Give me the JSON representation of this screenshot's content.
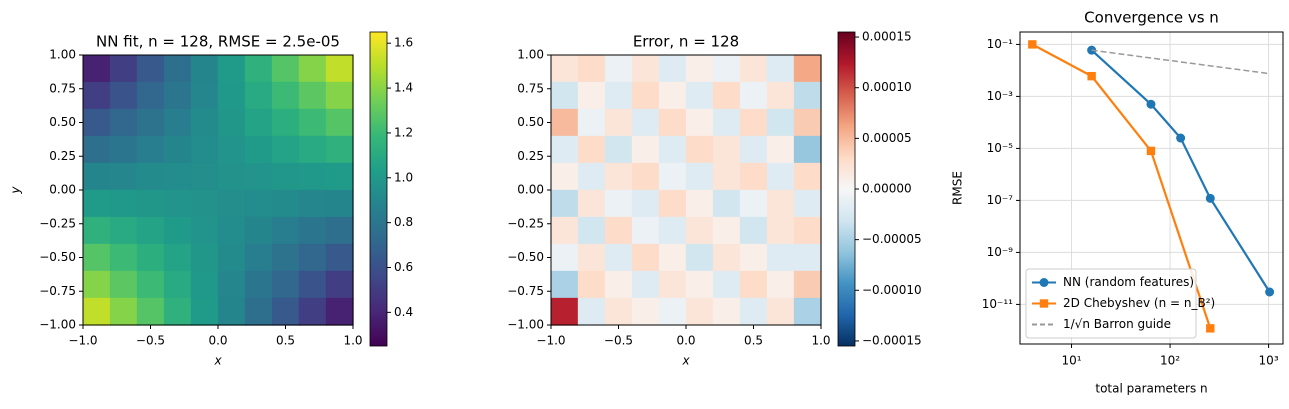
{
  "chart_data": [
    {
      "type": "heatmap",
      "title": "NN fit, n = 128, RMSE = 2.5e-05",
      "xlabel": "x",
      "ylabel": "y",
      "xlim": [
        -1,
        1
      ],
      "ylim": [
        -1,
        1
      ],
      "xticks": [
        {
          "value": -1,
          "label": "−1.0"
        },
        {
          "value": -0.5,
          "label": "−0.5"
        },
        {
          "value": 0,
          "label": "0.0"
        },
        0.5,
        {
          "value": 1,
          "label": "1.0"
        }
      ],
      "yticks": [
        {
          "value": -1,
          "label": "−1.00"
        },
        {
          "value": -0.75,
          "label": "−0.75"
        },
        {
          "value": -0.5,
          "label": "−0.50"
        },
        {
          "value": -0.25,
          "label": "−0.25"
        },
        {
          "value": 0,
          "label": "0.00"
        },
        0.25,
        {
          "value": 0.5,
          "label": "0.50"
        },
        0.75,
        {
          "value": 1,
          "label": "1.00"
        }
      ],
      "colormap": "viridis",
      "clim": [
        0.25,
        1.65
      ],
      "cticks": [
        0.4,
        0.6,
        0.8,
        {
          "value": 1,
          "label": "1.0"
        },
        1.2,
        1.4,
        1.6
      ],
      "values": [
        [
          0.38,
          0.51,
          0.64,
          0.76,
          0.89,
          1.01,
          1.14,
          1.27,
          1.39,
          1.52
        ],
        [
          0.51,
          0.61,
          0.71,
          0.8,
          0.9,
          1.0,
          1.1,
          1.2,
          1.29,
          1.39
        ],
        [
          0.64,
          0.71,
          0.78,
          0.85,
          0.92,
          0.99,
          1.06,
          1.13,
          1.2,
          1.27
        ],
        [
          0.76,
          0.8,
          0.85,
          0.89,
          0.93,
          0.97,
          1.01,
          1.06,
          1.1,
          1.14
        ],
        [
          0.89,
          0.9,
          0.92,
          0.93,
          0.94,
          0.96,
          0.97,
          0.99,
          1.0,
          1.01
        ],
        [
          1.01,
          1.0,
          0.99,
          0.97,
          0.96,
          0.94,
          0.93,
          0.92,
          0.9,
          0.89
        ],
        [
          1.14,
          1.1,
          1.06,
          1.01,
          0.97,
          0.93,
          0.89,
          0.85,
          0.8,
          0.76
        ],
        [
          1.27,
          1.2,
          1.13,
          1.06,
          0.99,
          0.92,
          0.85,
          0.78,
          0.71,
          0.64
        ],
        [
          1.39,
          1.29,
          1.2,
          1.1,
          1.0,
          0.9,
          0.8,
          0.71,
          0.61,
          0.51
        ],
        [
          1.52,
          1.39,
          1.27,
          1.14,
          1.01,
          0.89,
          0.76,
          0.64,
          0.51,
          0.38
        ]
      ]
    },
    {
      "type": "heatmap",
      "title": "Error, n = 128",
      "xlabel": "x",
      "xlim": [
        -1,
        1
      ],
      "ylim": [
        -1,
        1
      ],
      "xticks": [
        {
          "value": -1,
          "label": "−1.0"
        },
        {
          "value": -0.5,
          "label": "−0.5"
        },
        {
          "value": 0,
          "label": "0.0"
        },
        0.5,
        {
          "value": 1,
          "label": "1.0"
        }
      ],
      "yticks": [
        {
          "value": -1,
          "label": "−1.00"
        },
        {
          "value": -0.75,
          "label": "−0.75"
        },
        {
          "value": -0.5,
          "label": "−0.50"
        },
        {
          "value": -0.25,
          "label": "−0.25"
        },
        {
          "value": 0,
          "label": "0.00"
        },
        0.25,
        {
          "value": 0.5,
          "label": "0.50"
        },
        0.75,
        {
          "value": 1,
          "label": "1.00"
        }
      ],
      "colormap": "RdBu_r",
      "clim": [
        -0.000155,
        0.000155
      ],
      "cticks": [
        {
          "value": -0.00015,
          "label": "−0.00015"
        },
        {
          "value": -0.0001,
          "label": "−0.00010"
        },
        {
          "value": -5e-05,
          "label": "−0.00005"
        },
        {
          "value": 0,
          "label": "0.00000"
        },
        {
          "value": 5e-05,
          "label": "0.00005"
        },
        {
          "value": 0.0001,
          "label": "0.00010"
        },
        {
          "value": 0.00015,
          "label": "0.00015"
        }
      ],
      "values": [
        [
          2e-05,
          3e-05,
          -1e-05,
          2e-05,
          -2e-05,
          1e-05,
          -1e-05,
          2e-05,
          -2e-05,
          6e-05
        ],
        [
          -3e-05,
          1e-05,
          -2e-05,
          3e-05,
          1e-05,
          -2e-05,
          3e-05,
          -1e-05,
          2e-05,
          -4e-05
        ],
        [
          5e-05,
          -1e-05,
          2e-05,
          -2e-05,
          3e-05,
          1e-05,
          -2e-05,
          3e-05,
          -3e-05,
          4e-05
        ],
        [
          -2e-05,
          3e-05,
          -3e-05,
          1e-05,
          -2e-05,
          3e-05,
          2e-05,
          -2e-05,
          1e-05,
          -6e-05
        ],
        [
          1e-05,
          -2e-05,
          2e-05,
          3e-05,
          -1e-05,
          -2e-05,
          2e-05,
          3e-05,
          -2e-05,
          3e-05
        ],
        [
          -4e-05,
          2e-05,
          -1e-05,
          -2e-05,
          3e-05,
          1e-05,
          -3e-05,
          -1e-05,
          2e-05,
          -2e-05
        ],
        [
          2e-05,
          -3e-05,
          3e-05,
          -1e-05,
          -2e-05,
          2e-05,
          1e-05,
          -3e-05,
          2e-05,
          3e-05
        ],
        [
          -1e-05,
          2e-05,
          -2e-05,
          3e-05,
          1e-05,
          -3e-05,
          2e-05,
          1e-05,
          -2e-05,
          -2e-05
        ],
        [
          -5e-05,
          3e-05,
          1e-05,
          -2e-05,
          2e-05,
          1e-05,
          -2e-05,
          3e-05,
          1e-05,
          4e-05
        ],
        [
          0.00012,
          -2e-05,
          2e-05,
          1e-05,
          -1e-05,
          2e-05,
          1e-05,
          -2e-05,
          2e-05,
          -5e-05
        ]
      ]
    },
    {
      "type": "line",
      "title": "Convergence vs n",
      "xlabel": "total parameters n",
      "ylabel": "RMSE",
      "xscale": "log",
      "yscale": "log",
      "grid": true,
      "legend": "lower left",
      "xlim": [
        3,
        1400
      ],
      "ylim": [
        3e-13,
        0.3
      ],
      "xticks": [
        {
          "value": 10,
          "label": "10¹"
        },
        {
          "value": 100,
          "label": "10²"
        },
        {
          "value": 1000,
          "label": "10³"
        }
      ],
      "yticks": [
        {
          "value": 1e-11,
          "label": "10⁻¹¹"
        },
        {
          "value": 1e-09,
          "label": "10⁻⁹"
        },
        {
          "value": 1e-07,
          "label": "10⁻⁷"
        },
        {
          "value": 1e-05,
          "label": "10⁻⁵"
        },
        {
          "value": 0.001,
          "label": "10⁻³"
        },
        {
          "value": 0.1,
          "label": "10⁻¹"
        }
      ],
      "series": [
        {
          "name": "NN (random features)",
          "color": "#1f77b4",
          "marker": "circle",
          "linestyle": "solid",
          "x": [
            16,
            64,
            128,
            256,
            1024
          ],
          "values": [
            0.06,
            0.0005,
            2.5e-05,
            1.2e-07,
            3e-11
          ]
        },
        {
          "name": "2D Chebyshev (n = n_B²)",
          "color": "#ff7f0e",
          "marker": "square",
          "linestyle": "solid",
          "x": [
            4,
            16,
            64,
            256
          ],
          "values": [
            0.1,
            0.006,
            8e-06,
            1.2e-12
          ]
        },
        {
          "name": "1/√n Barron guide",
          "color": "#999999",
          "marker": "none",
          "linestyle": "dashed",
          "x": [
            16,
            1024
          ],
          "values": [
            0.06,
            0.0075
          ]
        }
      ]
    }
  ]
}
